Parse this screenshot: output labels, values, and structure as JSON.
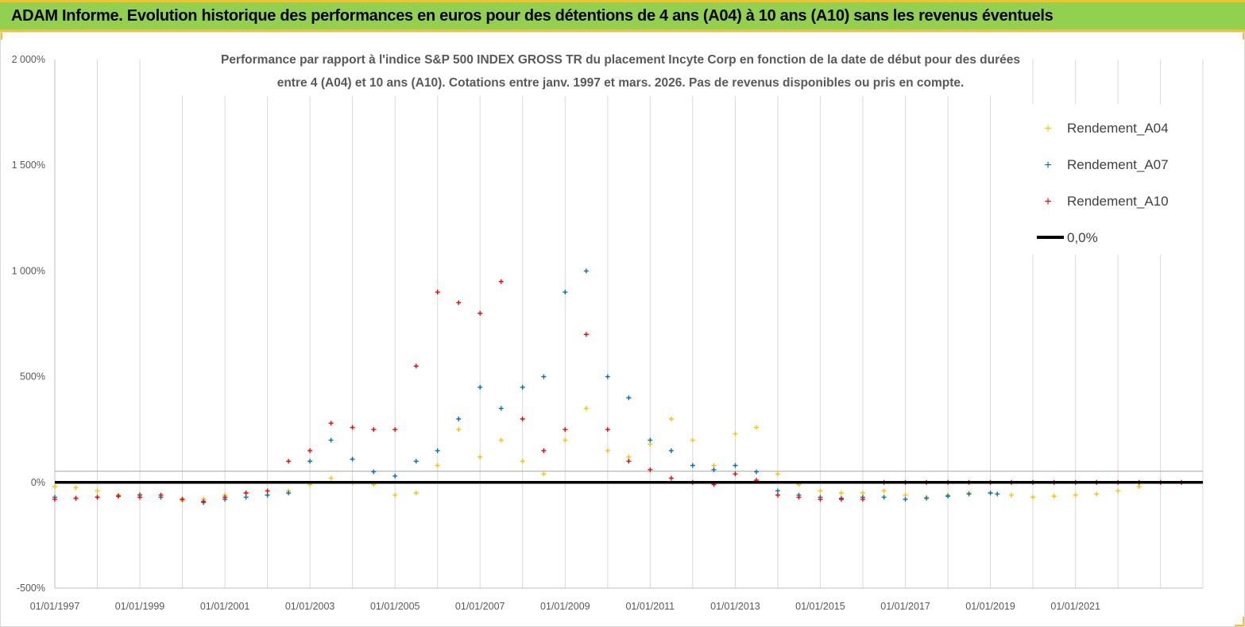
{
  "header": {
    "title": "ADAM Informe. Evolution historique des performances en euros pour des détentions de 4 ans (A04) à 10 ans (A10) sans les revenus éventuels"
  },
  "colors": {
    "banner": "#92d050",
    "banner_border": "#f2c230",
    "a04": "#ffc000",
    "a07": "#0070c0",
    "a10": "#ff0000",
    "zero_line": "#000000"
  },
  "chart_data": {
    "type": "scatter",
    "title_lines": [
      "Performance par rapport à l'indice S&P 500 INDEX GROSS TR  du placement Incyte Corp en fonction de la date de début pour des durées",
      "entre 4 (A04) et 10 ans (A10). Cotations entre janv. 1997 et mars. 2026. Pas de revenus disponibles ou pris en compte."
    ],
    "xlabel": "",
    "ylabel": "",
    "x_axis": {
      "min": "1997-01-01",
      "max": "2023-12-31",
      "tick_labels": [
        "01/01/1997",
        "01/01/1999",
        "01/01/2001",
        "01/01/2003",
        "01/01/2005",
        "01/01/2007",
        "01/01/2009",
        "01/01/2011",
        "01/01/2013",
        "01/01/2015",
        "01/01/2017",
        "01/01/2019",
        "01/01/2021"
      ],
      "gridlines": [
        "1997",
        "1998",
        "1999",
        "2000",
        "2001",
        "2002",
        "2003",
        "2004",
        "2005",
        "2006",
        "2007",
        "2008",
        "2009",
        "2010",
        "2011",
        "2012",
        "2013",
        "2014",
        "2015",
        "2016",
        "2017",
        "2018",
        "2019",
        "2020",
        "2021",
        "2022",
        "2023"
      ]
    },
    "y_axis": {
      "min": -500,
      "max": 2000,
      "unit": "%",
      "ticks": [
        -500,
        0,
        500,
        1000,
        1500,
        2000
      ],
      "tick_labels": [
        "-500%",
        "0%",
        "500%",
        "1 000%",
        "1 500%",
        "2 000%"
      ]
    },
    "grid": "vertical",
    "legend_position": "top-right",
    "series": [
      {
        "name": "Rendement_A04",
        "marker": "+",
        "x": [
          "1997-01",
          "1997-07",
          "1998-01",
          "1998-07",
          "1999-01",
          "1999-07",
          "2000-01",
          "2000-07",
          "2001-01",
          "2001-07",
          "2002-01",
          "2002-07",
          "2003-01",
          "2003-07",
          "2004-01",
          "2004-07",
          "2005-01",
          "2005-07",
          "2006-01",
          "2006-07",
          "2007-01",
          "2007-07",
          "2008-01",
          "2008-07",
          "2009-01",
          "2009-07",
          "2010-01",
          "2010-07",
          "2011-01",
          "2011-07",
          "2012-01",
          "2012-07",
          "2013-01",
          "2013-07",
          "2014-01",
          "2014-07",
          "2015-01",
          "2015-07",
          "2016-01",
          "2016-07",
          "2017-01",
          "2017-07",
          "2018-01",
          "2018-07",
          "2019-01",
          "2019-07",
          "2020-01",
          "2020-07",
          "2021-01",
          "2021-07",
          "2022-01",
          "2022-07"
        ],
        "y": [
          -20,
          -25,
          -40,
          -60,
          -55,
          -70,
          -85,
          -80,
          -60,
          -50,
          -60,
          -40,
          -10,
          20,
          0,
          -10,
          -60,
          -50,
          80,
          250,
          120,
          200,
          100,
          40,
          200,
          350,
          150,
          120,
          180,
          300,
          200,
          80,
          230,
          260,
          40,
          -10,
          -40,
          -50,
          -50,
          -40,
          -60,
          -70,
          -60,
          -50,
          -50,
          -60,
          -70,
          -65,
          -60,
          -55,
          -40,
          -20
        ]
      },
      {
        "name": "Rendement_A07",
        "marker": "+",
        "x": [
          "1997-01",
          "1997-07",
          "1998-01",
          "1998-07",
          "1999-01",
          "1999-07",
          "2000-01",
          "2000-07",
          "2001-01",
          "2001-07",
          "2002-01",
          "2002-07",
          "2003-01",
          "2003-07",
          "2004-01",
          "2004-07",
          "2005-01",
          "2005-07",
          "2006-01",
          "2006-07",
          "2007-01",
          "2007-07",
          "2008-01",
          "2008-07",
          "2009-01",
          "2009-07",
          "2010-01",
          "2010-07",
          "2011-01",
          "2011-07",
          "2012-01",
          "2012-07",
          "2013-01",
          "2013-07",
          "2014-01",
          "2014-07",
          "2015-01",
          "2015-07",
          "2016-01",
          "2016-07",
          "2017-01",
          "2017-07",
          "2018-01",
          "2018-07",
          "2019-01",
          "2019-03"
        ],
        "y": [
          -70,
          -75,
          -70,
          -65,
          -60,
          -70,
          -80,
          -95,
          -80,
          -70,
          -60,
          -50,
          100,
          200,
          110,
          50,
          30,
          100,
          150,
          300,
          450,
          350,
          450,
          500,
          900,
          1000,
          500,
          400,
          200,
          150,
          80,
          60,
          80,
          50,
          -40,
          -60,
          -70,
          -75,
          -70,
          -70,
          -80,
          -75,
          -65,
          -55,
          -50,
          -55
        ]
      },
      {
        "name": "Rendement_A10",
        "marker": "+",
        "x": [
          "1997-01",
          "1997-07",
          "1998-01",
          "1998-07",
          "1999-01",
          "1999-07",
          "2000-01",
          "2000-07",
          "2001-01",
          "2001-07",
          "2002-01",
          "2002-07",
          "2003-01",
          "2003-07",
          "2004-01",
          "2004-07",
          "2005-01",
          "2005-07",
          "2006-01",
          "2006-07",
          "2007-01",
          "2007-07",
          "2008-01",
          "2008-07",
          "2009-01",
          "2009-07",
          "2010-01",
          "2010-07",
          "2011-01",
          "2011-07",
          "2012-01",
          "2012-07",
          "2013-01",
          "2013-07",
          "2014-01",
          "2014-07",
          "2015-01",
          "2015-07",
          "2016-01",
          "2016-07",
          "2017-01",
          "2017-07",
          "2018-01",
          "2018-07",
          "2019-01",
          "2019-07",
          "2020-01",
          "2020-07",
          "2021-01",
          "2021-07",
          "2022-01",
          "2022-07",
          "2023-01",
          "2023-07"
        ],
        "y": [
          -80,
          -75,
          -70,
          -65,
          -70,
          -60,
          -80,
          -90,
          -70,
          -50,
          -40,
          100,
          150,
          280,
          260,
          250,
          250,
          550,
          900,
          850,
          800,
          950,
          300,
          150,
          250,
          700,
          250,
          100,
          60,
          20,
          0,
          -10,
          40,
          10,
          -60,
          -70,
          -80,
          -80,
          -80,
          0,
          0,
          0,
          0,
          0,
          0,
          0,
          0,
          0,
          0,
          0,
          0,
          0,
          0,
          0
        ]
      }
    ],
    "reference_line": {
      "name": "0,0%",
      "y": 0
    }
  }
}
